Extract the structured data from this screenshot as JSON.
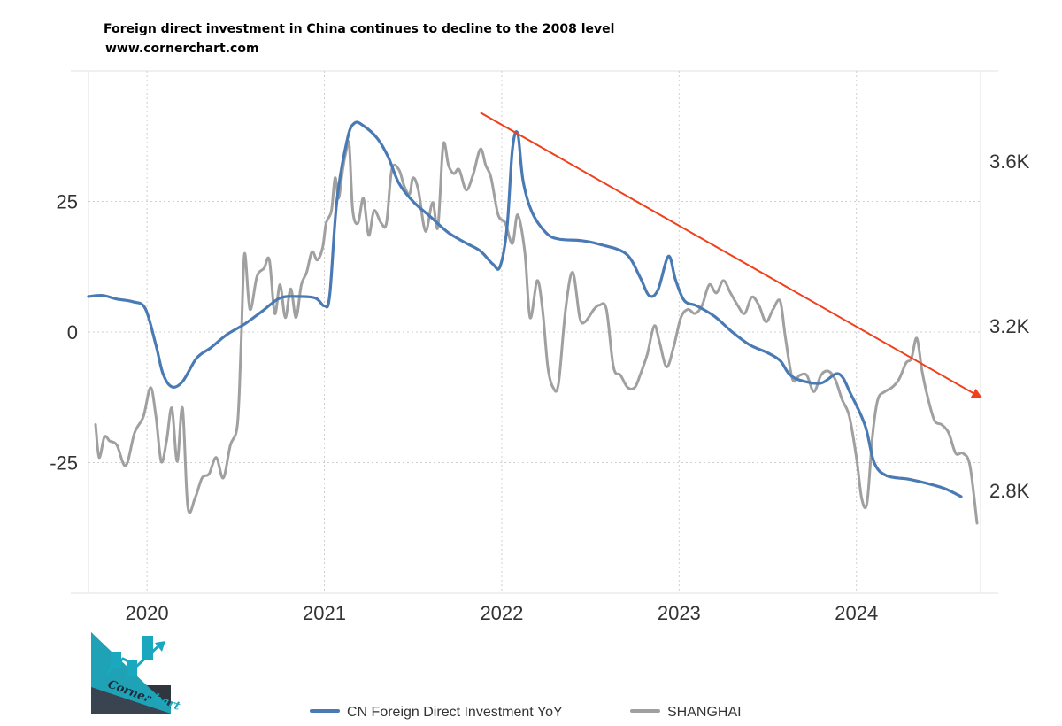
{
  "chart_data": {
    "type": "line",
    "title": "Foreign direct investment in China continues to decline to the 2008 level",
    "subtitle": "www.cornerchart.com",
    "x_ticks": [
      "2020",
      "2021",
      "2022",
      "2023",
      "2024"
    ],
    "xlim": [
      2019.67,
      2024.7
    ],
    "y_left": {
      "ticks": [
        "25",
        "0",
        "-25"
      ],
      "tick_values": [
        25,
        0,
        -25
      ],
      "range": [
        -50,
        50
      ]
    },
    "y_right": {
      "ticks": [
        "3.6K",
        "3.2K",
        "2.8K"
      ],
      "tick_values": [
        3600,
        3200,
        2800
      ],
      "range": [
        2550,
        3820
      ]
    },
    "grid": true,
    "legend_position": "bottom",
    "series": [
      {
        "name": "CN Foreign Direct Investment YoY",
        "axis": "left",
        "color": "#4a7ab4",
        "points": [
          [
            2019.67,
            6.8
          ],
          [
            2019.75,
            7.0
          ],
          [
            2019.83,
            6.3
          ],
          [
            2019.92,
            5.8
          ],
          [
            2019.99,
            4.5
          ],
          [
            2020.05,
            -2.5
          ],
          [
            2020.09,
            -8.0
          ],
          [
            2020.14,
            -10.5
          ],
          [
            2020.2,
            -9.5
          ],
          [
            2020.28,
            -5.0
          ],
          [
            2020.36,
            -3.0
          ],
          [
            2020.45,
            -0.5
          ],
          [
            2020.55,
            1.5
          ],
          [
            2020.65,
            4.0
          ],
          [
            2020.75,
            6.5
          ],
          [
            2020.85,
            6.8
          ],
          [
            2020.95,
            6.5
          ],
          [
            2021.0,
            5.0
          ],
          [
            2021.03,
            7.0
          ],
          [
            2021.07,
            25.0
          ],
          [
            2021.13,
            37.0
          ],
          [
            2021.17,
            40.0
          ],
          [
            2021.22,
            39.5
          ],
          [
            2021.3,
            37.0
          ],
          [
            2021.36,
            33.5
          ],
          [
            2021.42,
            28.5
          ],
          [
            2021.5,
            25.0
          ],
          [
            2021.6,
            22.0
          ],
          [
            2021.7,
            19.0
          ],
          [
            2021.8,
            17.0
          ],
          [
            2021.88,
            15.5
          ],
          [
            2021.95,
            13.0
          ],
          [
            2021.99,
            12.5
          ],
          [
            2022.03,
            20.0
          ],
          [
            2022.06,
            35.0
          ],
          [
            2022.09,
            38.0
          ],
          [
            2022.12,
            29.0
          ],
          [
            2022.17,
            23.0
          ],
          [
            2022.25,
            19.0
          ],
          [
            2022.32,
            17.8
          ],
          [
            2022.45,
            17.5
          ],
          [
            2022.55,
            16.8
          ],
          [
            2022.7,
            15.0
          ],
          [
            2022.78,
            10.5
          ],
          [
            2022.83,
            7.0
          ],
          [
            2022.88,
            8.0
          ],
          [
            2022.94,
            14.5
          ],
          [
            2022.98,
            10.0
          ],
          [
            2023.03,
            6.0
          ],
          [
            2023.1,
            5.0
          ],
          [
            2023.2,
            3.0
          ],
          [
            2023.3,
            0.0
          ],
          [
            2023.4,
            -2.5
          ],
          [
            2023.5,
            -4.0
          ],
          [
            2023.57,
            -5.5
          ],
          [
            2023.62,
            -8.0
          ],
          [
            2023.68,
            -9.2
          ],
          [
            2023.8,
            -9.8
          ],
          [
            2023.9,
            -8.0
          ],
          [
            2023.97,
            -12.0
          ],
          [
            2024.05,
            -18.0
          ],
          [
            2024.1,
            -25.0
          ],
          [
            2024.17,
            -27.5
          ],
          [
            2024.3,
            -28.2
          ],
          [
            2024.4,
            -29.0
          ],
          [
            2024.5,
            -30.0
          ],
          [
            2024.59,
            -31.5
          ]
        ]
      },
      {
        "name": "SHANGHAI",
        "axis": "right",
        "color": "#a0a0a0",
        "points": [
          [
            2019.71,
            2960
          ],
          [
            2019.73,
            2880
          ],
          [
            2019.76,
            2930
          ],
          [
            2019.79,
            2920
          ],
          [
            2019.83,
            2910
          ],
          [
            2019.88,
            2860
          ],
          [
            2019.93,
            2940
          ],
          [
            2019.98,
            2980
          ],
          [
            2020.02,
            3050
          ],
          [
            2020.05,
            2980
          ],
          [
            2020.08,
            2870
          ],
          [
            2020.11,
            2920
          ],
          [
            2020.14,
            3000
          ],
          [
            2020.17,
            2870
          ],
          [
            2020.2,
            3000
          ],
          [
            2020.23,
            2760
          ],
          [
            2020.27,
            2780
          ],
          [
            2020.31,
            2830
          ],
          [
            2020.35,
            2840
          ],
          [
            2020.39,
            2880
          ],
          [
            2020.43,
            2830
          ],
          [
            2020.47,
            2910
          ],
          [
            2020.51,
            2960
          ],
          [
            2020.53,
            3150
          ],
          [
            2020.55,
            3375
          ],
          [
            2020.58,
            3240
          ],
          [
            2020.62,
            3320
          ],
          [
            2020.66,
            3340
          ],
          [
            2020.69,
            3360
          ],
          [
            2020.72,
            3230
          ],
          [
            2020.75,
            3300
          ],
          [
            2020.78,
            3220
          ],
          [
            2020.81,
            3290
          ],
          [
            2020.84,
            3220
          ],
          [
            2020.87,
            3300
          ],
          [
            2020.9,
            3330
          ],
          [
            2020.93,
            3380
          ],
          [
            2020.96,
            3360
          ],
          [
            2020.99,
            3390
          ],
          [
            2021.01,
            3450
          ],
          [
            2021.04,
            3480
          ],
          [
            2021.06,
            3560
          ],
          [
            2021.08,
            3510
          ],
          [
            2021.1,
            3570
          ],
          [
            2021.12,
            3620
          ],
          [
            2021.14,
            3640
          ],
          [
            2021.16,
            3480
          ],
          [
            2021.19,
            3450
          ],
          [
            2021.22,
            3510
          ],
          [
            2021.25,
            3420
          ],
          [
            2021.28,
            3480
          ],
          [
            2021.32,
            3450
          ],
          [
            2021.35,
            3450
          ],
          [
            2021.38,
            3580
          ],
          [
            2021.42,
            3580
          ],
          [
            2021.45,
            3540
          ],
          [
            2021.48,
            3520
          ],
          [
            2021.5,
            3560
          ],
          [
            2021.53,
            3530
          ],
          [
            2021.57,
            3430
          ],
          [
            2021.61,
            3500
          ],
          [
            2021.64,
            3440
          ],
          [
            2021.67,
            3640
          ],
          [
            2021.7,
            3590
          ],
          [
            2021.73,
            3570
          ],
          [
            2021.76,
            3580
          ],
          [
            2021.8,
            3530
          ],
          [
            2021.84,
            3570
          ],
          [
            2021.88,
            3630
          ],
          [
            2021.91,
            3590
          ],
          [
            2021.94,
            3560
          ],
          [
            2021.98,
            3470
          ],
          [
            2022.02,
            3450
          ],
          [
            2022.06,
            3400
          ],
          [
            2022.09,
            3470
          ],
          [
            2022.13,
            3380
          ],
          [
            2022.16,
            3220
          ],
          [
            2022.2,
            3310
          ],
          [
            2022.23,
            3240
          ],
          [
            2022.26,
            3100
          ],
          [
            2022.29,
            3050
          ],
          [
            2022.32,
            3060
          ],
          [
            2022.36,
            3240
          ],
          [
            2022.4,
            3330
          ],
          [
            2022.44,
            3220
          ],
          [
            2022.47,
            3210
          ],
          [
            2022.52,
            3240
          ],
          [
            2022.55,
            3250
          ],
          [
            2022.59,
            3240
          ],
          [
            2022.63,
            3100
          ],
          [
            2022.67,
            3080
          ],
          [
            2022.71,
            3050
          ],
          [
            2022.75,
            3050
          ],
          [
            2022.78,
            3080
          ],
          [
            2022.82,
            3130
          ],
          [
            2022.86,
            3200
          ],
          [
            2022.89,
            3160
          ],
          [
            2022.93,
            3100
          ],
          [
            2022.97,
            3150
          ],
          [
            2023.01,
            3220
          ],
          [
            2023.05,
            3240
          ],
          [
            2023.09,
            3230
          ],
          [
            2023.13,
            3250
          ],
          [
            2023.17,
            3300
          ],
          [
            2023.21,
            3280
          ],
          [
            2023.25,
            3310
          ],
          [
            2023.29,
            3280
          ],
          [
            2023.33,
            3250
          ],
          [
            2023.37,
            3230
          ],
          [
            2023.41,
            3270
          ],
          [
            2023.45,
            3250
          ],
          [
            2023.49,
            3210
          ],
          [
            2023.53,
            3240
          ],
          [
            2023.57,
            3260
          ],
          [
            2023.6,
            3170
          ],
          [
            2023.64,
            3070
          ],
          [
            2023.68,
            3080
          ],
          [
            2023.72,
            3080
          ],
          [
            2023.76,
            3040
          ],
          [
            2023.8,
            3080
          ],
          [
            2023.84,
            3090
          ],
          [
            2023.88,
            3070
          ],
          [
            2023.92,
            3020
          ],
          [
            2023.96,
            2980
          ],
          [
            2024.0,
            2880
          ],
          [
            2024.03,
            2780
          ],
          [
            2024.06,
            2770
          ],
          [
            2024.09,
            2930
          ],
          [
            2024.12,
            3020
          ],
          [
            2024.16,
            3040
          ],
          [
            2024.2,
            3050
          ],
          [
            2024.24,
            3070
          ],
          [
            2024.28,
            3110
          ],
          [
            2024.31,
            3120
          ],
          [
            2024.34,
            3170
          ],
          [
            2024.37,
            3090
          ],
          [
            2024.4,
            3030
          ],
          [
            2024.44,
            2970
          ],
          [
            2024.48,
            2960
          ],
          [
            2024.52,
            2940
          ],
          [
            2024.56,
            2890
          ],
          [
            2024.6,
            2890
          ],
          [
            2024.64,
            2860
          ],
          [
            2024.68,
            2720
          ]
        ]
      }
    ],
    "annotations": [
      {
        "type": "trend-arrow",
        "color": "#f0401c",
        "from": [
          2021.88,
          42
        ],
        "to": [
          2024.7,
          -12.5
        ]
      }
    ]
  }
}
